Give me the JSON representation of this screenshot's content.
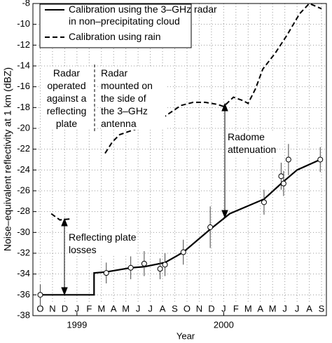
{
  "chart_data": {
    "type": "line",
    "y_label": "Noise–equivalent reflectivity at 1 km (dBZ)",
    "x_label": "Year",
    "categories": [
      "O",
      "N",
      "D",
      "J",
      "F",
      "M",
      "A",
      "M",
      "J",
      "J",
      "A",
      "S",
      "O",
      "N",
      "D",
      "J",
      "F",
      "M",
      "A",
      "M",
      "J",
      "J",
      "A",
      "S"
    ],
    "year_ticks": [
      {
        "value": 3,
        "label": "1999"
      },
      {
        "value": 15,
        "label": "2000"
      }
    ],
    "xlim": [
      -0.6,
      23.4
    ],
    "ylim": [
      -38,
      -8
    ],
    "yticks": [
      -38,
      -36,
      -34,
      -32,
      -30,
      -28,
      -26,
      -24,
      -22,
      -20,
      -18,
      -16,
      -14,
      -12,
      -10,
      -8
    ],
    "grid": true,
    "legend": "upper left",
    "series": [
      {
        "name": "Calibration using the 3–GHz radar\nin non–precipitating cloud",
        "color": "#000000",
        "style": "solid",
        "x": [
          0,
          4.4,
          4.4,
          5.4,
          7.4,
          8.5,
          10.2,
          11.7,
          13.9,
          15.5,
          18.3,
          19.8,
          21.0,
          22.9
        ],
        "values": [
          -36,
          -36,
          -33.9,
          -33.8,
          -33.4,
          -33.3,
          -32.9,
          -31.9,
          -29.7,
          -28.2,
          -26.8,
          -25.2,
          -24.0,
          -23.0
        ]
      },
      {
        "name": "Calibration using rain",
        "color": "#000000",
        "style": "dashed",
        "x": [
          0.9,
          1.6,
          2.5,
          null,
          5.3,
          5.9,
          6.5,
          7.5,
          8.5,
          9.5,
          10.5,
          11.5,
          12.5,
          13.5,
          14.5,
          15.0,
          15.8,
          16.5,
          17.0,
          17.6,
          18.2,
          19.2,
          20.2,
          21.2,
          22.0,
          23.0
        ],
        "values": [
          -28.2,
          -28.8,
          -28.7,
          null,
          -22.4,
          -21.3,
          -20.6,
          -20.2,
          -19.8,
          -19.4,
          -18.6,
          -17.8,
          -17.5,
          -17.5,
          -17.7,
          -17.9,
          -17.0,
          -17.3,
          -17.6,
          -16.2,
          -14.3,
          -12.8,
          -11.0,
          -9.0,
          -8.0,
          -8.5
        ]
      }
    ],
    "points": {
      "x": [
        0,
        5.4,
        7.4,
        8.5,
        9.8,
        10.2,
        11.7,
        13.9,
        18.3,
        19.7,
        19.9,
        20.3,
        22.9
      ],
      "values": [
        -36,
        -33.9,
        -33.4,
        -33.0,
        -33.5,
        -33.1,
        -31.9,
        -29.5,
        -27.1,
        -24.6,
        -25.3,
        -23.0,
        -23.0
      ],
      "errors": [
        1.0,
        1.0,
        1.1,
        1.2,
        1.0,
        1.1,
        1.2,
        2.0,
        1.2,
        1.3,
        1.2,
        1.5,
        1.2
      ]
    },
    "annotations": [
      {
        "text": "Radar\noperated\nagainst a\nreflecting\nplate"
      },
      {
        "text": "Radar\nmounted on\nthe side of\nthe 3–GHz\nantenna"
      },
      {
        "text": "Radome\nattenuation"
      },
      {
        "text": "Reflecting plate\nlosses"
      }
    ]
  }
}
